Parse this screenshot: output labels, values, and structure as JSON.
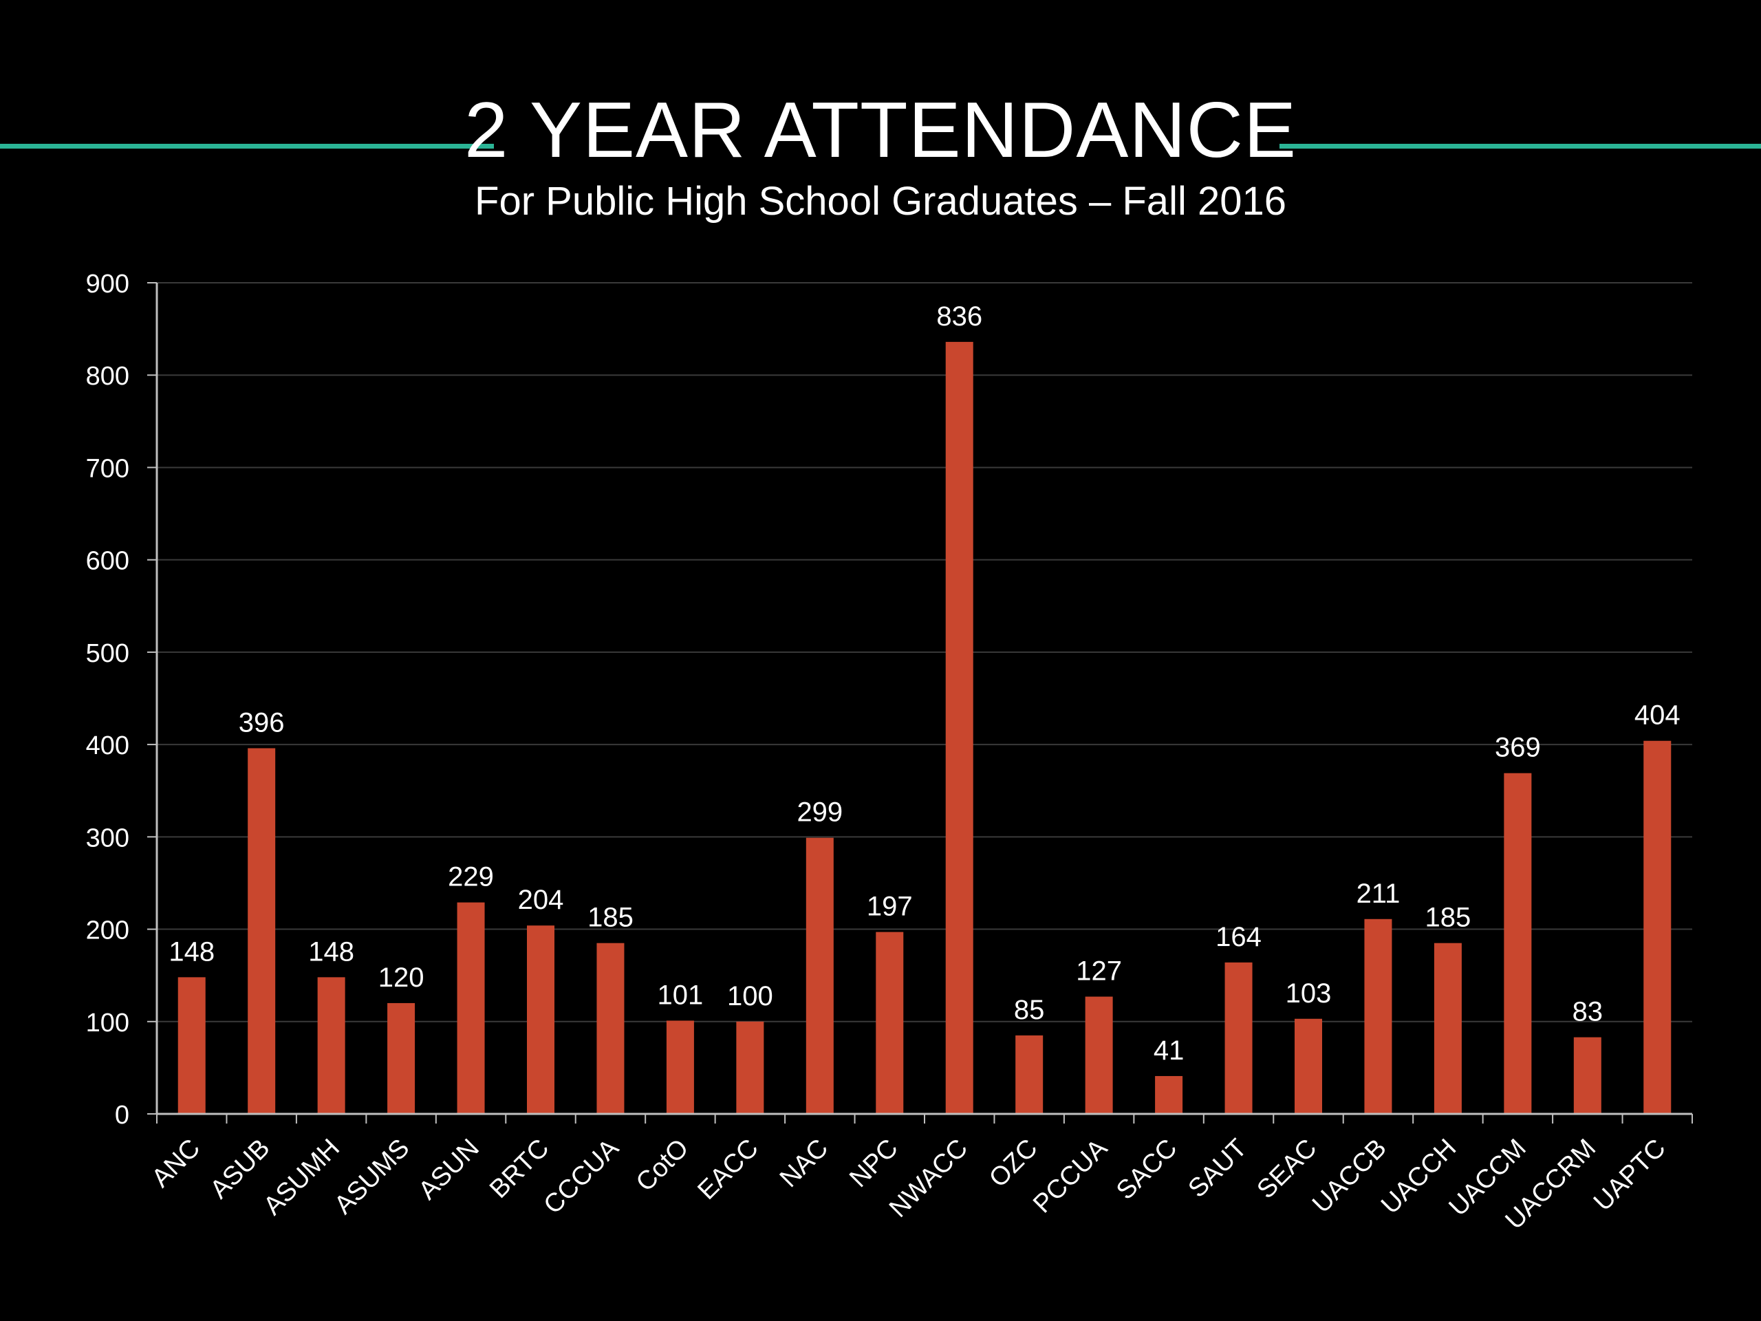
{
  "header": {
    "title": "2 YEAR ATTENDANCE",
    "subtitle": "For Public High School Graduates – Fall 2016"
  },
  "colors": {
    "background": "#000000",
    "accent_rule": "#2bb596",
    "bar": "#c9472e",
    "gridline": "#3a3a3a",
    "axis": "#bfbfbf",
    "text": "#ffffff"
  },
  "chart_data": {
    "type": "bar",
    "title": "2 YEAR ATTENDANCE",
    "subtitle": "For Public High School Graduates – Fall 2016",
    "xlabel": "",
    "ylabel": "",
    "ylim": [
      0,
      900
    ],
    "yticks": [
      0,
      100,
      200,
      300,
      400,
      500,
      600,
      700,
      800,
      900
    ],
    "grid": true,
    "legend": "none",
    "categories": [
      "ANC",
      "ASUB",
      "ASUMH",
      "ASUMS",
      "ASUN",
      "BRTC",
      "CCCUA",
      "CotO",
      "EACC",
      "NAC",
      "NPC",
      "NWACC",
      "OZC",
      "PCCUA",
      "SACC",
      "SAUT",
      "SEAC",
      "UACCB",
      "UACCH",
      "UACCM",
      "UACCRM",
      "UAPTC"
    ],
    "values": [
      148,
      396,
      148,
      120,
      229,
      204,
      185,
      101,
      100,
      299,
      197,
      836,
      85,
      127,
      41,
      164,
      103,
      211,
      185,
      369,
      83,
      404
    ]
  }
}
